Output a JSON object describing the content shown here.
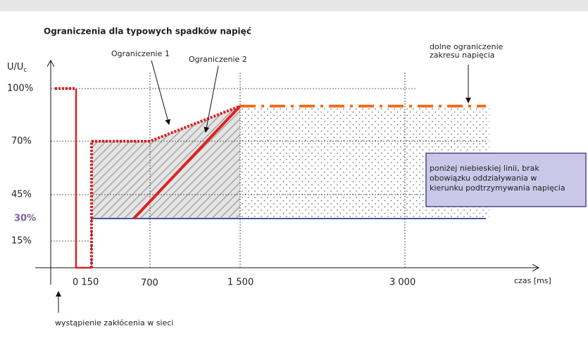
{
  "title": "Ograniczenia dla typowych spadków napięć",
  "y_axis": {
    "label": "U/U",
    "label_sub": "c",
    "ticks": [
      "100%",
      "70%",
      "45%",
      "30%",
      "15%"
    ]
  },
  "x_axis": {
    "label": "czas [ms]",
    "ticks": [
      "0 150",
      "700",
      "1 500",
      "3 000"
    ]
  },
  "annotations": {
    "limit1": "Ograniczenie 1",
    "limit2": "Ograniczenie 2",
    "lower_limit": [
      "dolne ograniczenie",
      "zakresu napięcia"
    ],
    "event": "wystąpienie zakłócenia w sieci",
    "box": [
      "poniżej niebieskiej linii, brak",
      "obowiązku oddziaływania w",
      "kierunku podtrzymywania napięcia"
    ]
  }
}
